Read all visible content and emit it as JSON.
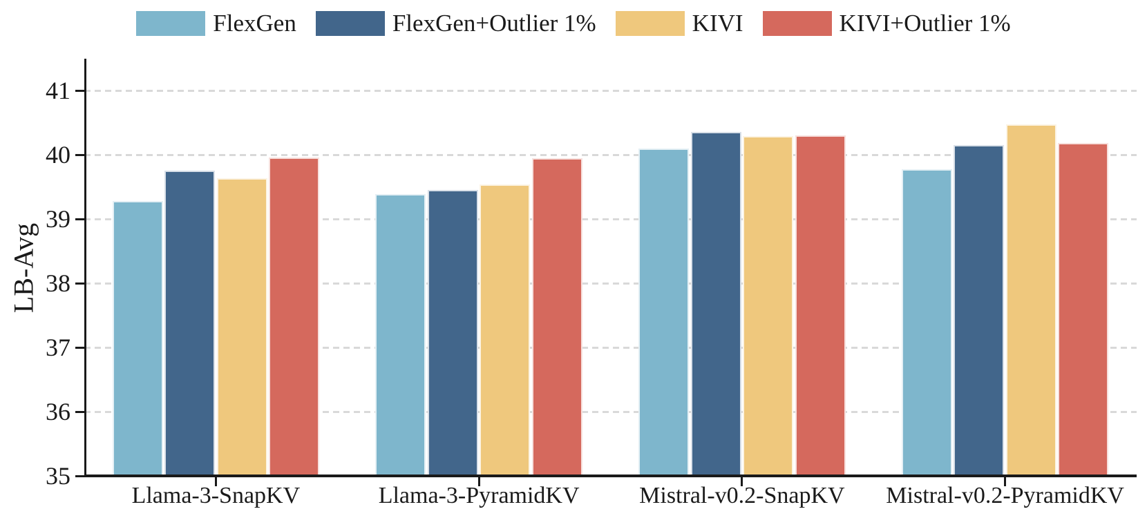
{
  "figure": {
    "background": "#ffffff",
    "axis_color": "#1a1a1a",
    "grid_color": "#d9d9d9",
    "bar_edge_color": "rgba(255,255,255,0.8)"
  },
  "chart_data": {
    "type": "bar",
    "title": "",
    "xlabel": "",
    "ylabel": "LB-Avg",
    "ylim": [
      35,
      41.5
    ],
    "yticks": [
      35,
      36,
      37,
      38,
      39,
      40,
      41
    ],
    "grid": "horizontal dashed",
    "legend_position": "top",
    "categories": [
      "Llama-3-SnapKV",
      "Llama-3-PyramidKV",
      "Mistral-v0.2-SnapKV",
      "Mistral-v0.2-PyramidKV"
    ],
    "series": [
      {
        "name": "FlexGen",
        "color": "#7EB6CC",
        "values": [
          39.28,
          39.39,
          40.1,
          39.78
        ]
      },
      {
        "name": "FlexGen+Outlier 1%",
        "color": "#42668B",
        "values": [
          39.76,
          39.46,
          40.36,
          40.15
        ]
      },
      {
        "name": "KIVI",
        "color": "#EFC87D",
        "values": [
          39.64,
          39.54,
          40.29,
          40.48
        ]
      },
      {
        "name": "KIVI+Outlier 1%",
        "color": "#D5695D",
        "values": [
          39.96,
          39.95,
          40.31,
          40.19
        ]
      }
    ]
  }
}
